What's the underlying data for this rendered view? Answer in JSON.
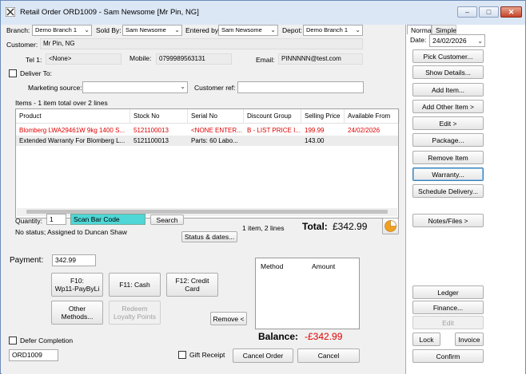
{
  "window": {
    "title": "Retail Order ORD1009 - Sam Newsome [Mr Pin, NG]"
  },
  "header": {
    "branch_label": "Branch:",
    "branch_value": "Demo Branch 1",
    "sold_by_label": "Sold By:",
    "sold_by_value": "Sam Newsome",
    "entered_by_label": "Entered by:",
    "entered_by_value": "Sam Newsome",
    "depot_label": "Depot:",
    "depot_value": "Demo Branch 1",
    "customer_label": "Customer:",
    "customer_value": "Mr Pin, NG",
    "tel1_label": "Tel 1:",
    "tel1_value": "<None>",
    "mobile_label": "Mobile:",
    "mobile_value": "0799989563131",
    "email_label": "Email:",
    "email_value": "PINNNNN@test.com",
    "deliver_to_label": "Deliver To:",
    "marketing_label": "Marketing source:",
    "marketing_value": "",
    "customer_ref_label": "Customer ref:",
    "customer_ref_value": ""
  },
  "items": {
    "summary": "Items - 1 item total over 2 lines",
    "columns": [
      "Product",
      "Stock No",
      "Serial No",
      "Discount Group",
      "Selling Price",
      "Available From"
    ],
    "rows": [
      {
        "product": "Blomberg LWA29461W 9kg 1400 S...",
        "stock": "5121100013",
        "serial": "<NONE ENTER...",
        "discount": "B - LIST PRICE I...",
        "price": "199.99",
        "available": "24/02/2026",
        "highlight": true
      },
      {
        "product": "Extended Warranty For Blomberg L...",
        "stock": "5121100013",
        "serial": "Parts: 60 Labo...",
        "discount": "",
        "price": "143.00",
        "available": "",
        "highlight": false
      }
    ]
  },
  "order": {
    "quantity_label": "Quantity:",
    "quantity_value": "1",
    "scan_label": "Scan Bar Code",
    "search_label": "Search",
    "status_text": "No status; Assigned to Duncan Shaw",
    "status_button": "Status & dates...",
    "item_count": "1 item, 2 lines",
    "total_label": "Total:",
    "total_value": "£342.99"
  },
  "payment": {
    "label": "Payment:",
    "value": "342.99",
    "f10_line1": "F10:",
    "f10_line2": "Wp11-PayByLi",
    "f11": "F11: Cash",
    "f12_line1": "F12: Credit",
    "f12_line2": "Card",
    "other_line1": "Other",
    "other_line2": "Methods...",
    "redeem_line1": "Redeem",
    "redeem_line2": "Loyalty Points",
    "remove": "Remove <",
    "method_col": "Method",
    "amount_col": "Amount",
    "balance_label": "Balance:",
    "balance_value": "-£342.99"
  },
  "footer": {
    "defer_label": "Defer Completion",
    "order_no": "ORD1009",
    "gift_label": "Gift Receipt",
    "cancel_order": "Cancel Order",
    "cancel": "Cancel"
  },
  "sidebar": {
    "tab_normal": "Normal",
    "tab_simple": "Simple",
    "date_label": "Date:",
    "date_value": "24/02/2026",
    "buttons": [
      "Pick Customer...",
      "Show Details...",
      "Add Item...",
      "Add Other Item >",
      "Edit >",
      "Package...",
      "Remove Item",
      "Warranty...",
      "Schedule Delivery..."
    ],
    "notes": "Notes/Files >",
    "ledger": "Ledger",
    "finance": "Finance...",
    "edit": "Edit",
    "lock": "Lock",
    "invoice": "Invoice",
    "confirm": "Confirm"
  },
  "colors": {
    "highlight_text": "#e00000",
    "scan_bg": "#4fd6d6",
    "balance": "#e00000",
    "pie": "#f0a020"
  }
}
